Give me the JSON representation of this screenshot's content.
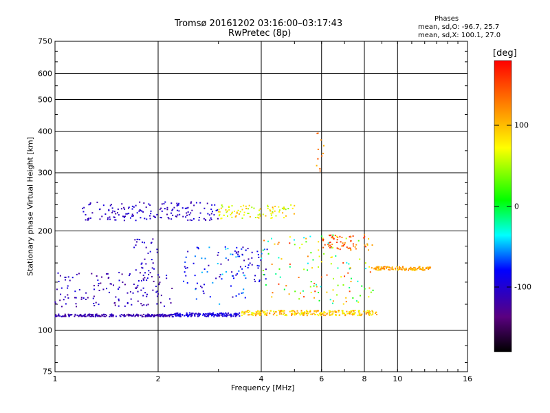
{
  "chart_data": {
    "type": "scatter",
    "title_line1": "Tromsø 20161202 03:16:00–03:17:43",
    "title_line2": "RwPretec (8p)",
    "xlabel": "Frequency [MHz]",
    "ylabel": "Stationary phase Virtual Height [km]",
    "x_scale": "log",
    "y_scale": "log",
    "xlim": [
      1,
      16
    ],
    "ylim": [
      75,
      750
    ],
    "x_ticks": [
      "1",
      "2",
      "4",
      "6",
      "8",
      "10",
      "16"
    ],
    "x_tick_values": [
      1,
      2,
      4,
      6,
      8,
      10,
      16
    ],
    "x_gridlines": [
      2,
      4,
      6,
      8,
      10
    ],
    "y_ticks": [
      "750",
      "600",
      "500",
      "400",
      "300",
      "200",
      "100",
      "75"
    ],
    "y_tick_values": [
      750,
      600,
      500,
      400,
      300,
      200,
      100,
      75
    ],
    "y_gridlines": [
      600,
      500,
      400,
      300,
      200,
      100
    ],
    "grid": true,
    "stats": {
      "heading": "Phases",
      "line_o": "mean, sd,O: -96.7, 25.7",
      "line_x": "mean, sd,X: 100.1, 27.0"
    },
    "colorbar": {
      "label": "[deg]",
      "ticks": [
        "100",
        "0",
        "-100"
      ],
      "tick_values": [
        100,
        0,
        -100
      ],
      "range": [
        -180,
        180
      ],
      "colormap": "rainbow"
    },
    "clusters": [
      {
        "x": [
          1.0,
          2.2
        ],
        "y": [
          110,
          112
        ],
        "phase": [
          -130,
          -100
        ]
      },
      {
        "x": [
          2.2,
          3.5
        ],
        "y": [
          110,
          113
        ],
        "phase": [
          -110,
          -80
        ]
      },
      {
        "x": [
          3.5,
          8.7
        ],
        "y": [
          111,
          115
        ],
        "phase": [
          60,
          130
        ]
      },
      {
        "x": [
          1.0,
          2.2
        ],
        "y": [
          118,
          150
        ],
        "phase": [
          -130,
          -90
        ]
      },
      {
        "x": [
          1.7,
          2.0
        ],
        "y": [
          150,
          190
        ],
        "phase": [
          -120,
          -90
        ]
      },
      {
        "x": [
          2.3,
          3.6
        ],
        "y": [
          120,
          180
        ],
        "phase": [
          -120,
          -40
        ]
      },
      {
        "x": [
          3.4,
          4.2
        ],
        "y": [
          140,
          180
        ],
        "phase": [
          -120,
          -60
        ]
      },
      {
        "x": [
          4.0,
          8.5
        ],
        "y": [
          120,
          195
        ],
        "phase": [
          -40,
          160
        ]
      },
      {
        "x": [
          6.0,
          8.3
        ],
        "y": [
          175,
          195
        ],
        "phase": [
          110,
          170
        ]
      },
      {
        "x": [
          8.4,
          12.5
        ],
        "y": [
          152,
          156
        ],
        "phase": [
          90,
          130
        ]
      },
      {
        "x": [
          1.2,
          3.0
        ],
        "y": [
          215,
          245
        ],
        "phase": [
          -120,
          -90
        ]
      },
      {
        "x": [
          3.0,
          5.0
        ],
        "y": [
          218,
          240
        ],
        "phase": [
          40,
          110
        ]
      },
      {
        "x": [
          5.8,
          6.1
        ],
        "y": [
          300,
          420
        ],
        "phase": [
          100,
          170
        ]
      }
    ]
  }
}
